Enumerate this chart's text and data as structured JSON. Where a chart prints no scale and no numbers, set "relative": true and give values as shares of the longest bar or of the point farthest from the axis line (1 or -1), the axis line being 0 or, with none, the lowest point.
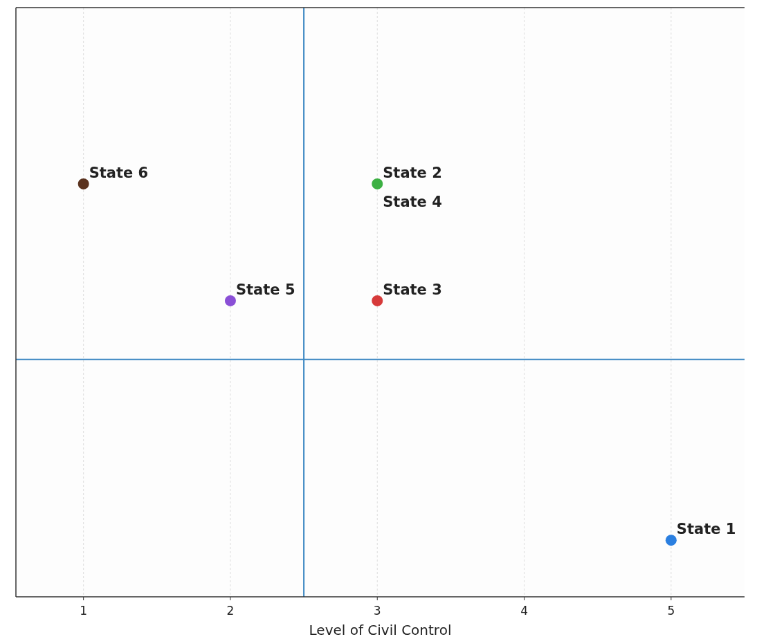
{
  "chart_data": {
    "type": "scatter",
    "xlabel": "Level of Civil Control",
    "relative": true,
    "x": [
      5,
      3,
      3,
      2,
      1
    ],
    "values": [
      0.137,
      1,
      0.717,
      0.717,
      1
    ],
    "colors": [
      "#2b7fe0",
      "#3cb043",
      "#d63a3a",
      "#8a4fd6",
      "#5a321e"
    ],
    "xlim": [
      0.54,
      5.5
    ],
    "xticks": [
      1,
      2,
      3,
      4,
      5
    ],
    "tick_labels": "x",
    "grid": "x",
    "marker": "circle",
    "ref_lines": [
      {
        "axis": "x",
        "value": 2.5,
        "color": "#3a86c2"
      },
      {
        "axis": "y",
        "value": 0.575,
        "color": "#3a86c2"
      }
    ],
    "annotations": [
      {
        "text": "State 1",
        "x": 5,
        "y": 0.137
      },
      {
        "text": "State 2",
        "x": 3,
        "y": 1
      },
      {
        "text": "State 3",
        "x": 3,
        "y": 0.717
      },
      {
        "text": "State 4",
        "x": 3,
        "y": 1
      },
      {
        "text": "State 5",
        "x": 2,
        "y": 0.717
      },
      {
        "text": "State 6",
        "x": 1,
        "y": 1
      }
    ]
  }
}
